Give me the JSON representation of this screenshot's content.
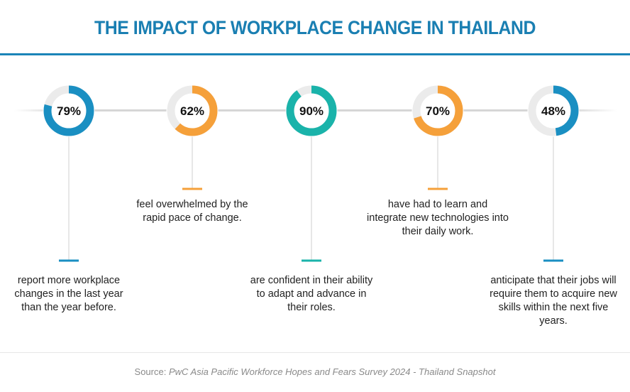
{
  "title": "THE IMPACT OF WORKPLACE CHANGE IN THAILAND",
  "colors": {
    "title": "#1a7fb2",
    "blue": "#1a8fc2",
    "orange": "#f5a03a",
    "teal": "#1ab3aa",
    "track": "#ebebeb"
  },
  "chart_data": {
    "type": "pie",
    "variant": "donut-gauges",
    "items": [
      {
        "label": "79%",
        "value": 79,
        "color": "#1a8fc2",
        "text": "report more workplace changes in the last year than the year before."
      },
      {
        "label": "62%",
        "value": 62,
        "color": "#f5a03a",
        "text": "feel overwhelmed by the rapid pace of change."
      },
      {
        "label": "90%",
        "value": 90,
        "color": "#1ab3aa",
        "text": "are confident in their ability to adapt and advance in their roles."
      },
      {
        "label": "70%",
        "value": 70,
        "color": "#f5a03a",
        "text": "have had to learn and integrate new technologies into their daily work."
      },
      {
        "label": "48%",
        "value": 48,
        "color": "#1a8fc2",
        "text": "anticipate that their jobs will require them to acquire new skills within the next five years."
      }
    ]
  },
  "source": {
    "prefix": "Source: ",
    "text": "PwC Asia Pacific Workforce Hopes and Fears Survey 2024 - Thailand Snapshot"
  }
}
